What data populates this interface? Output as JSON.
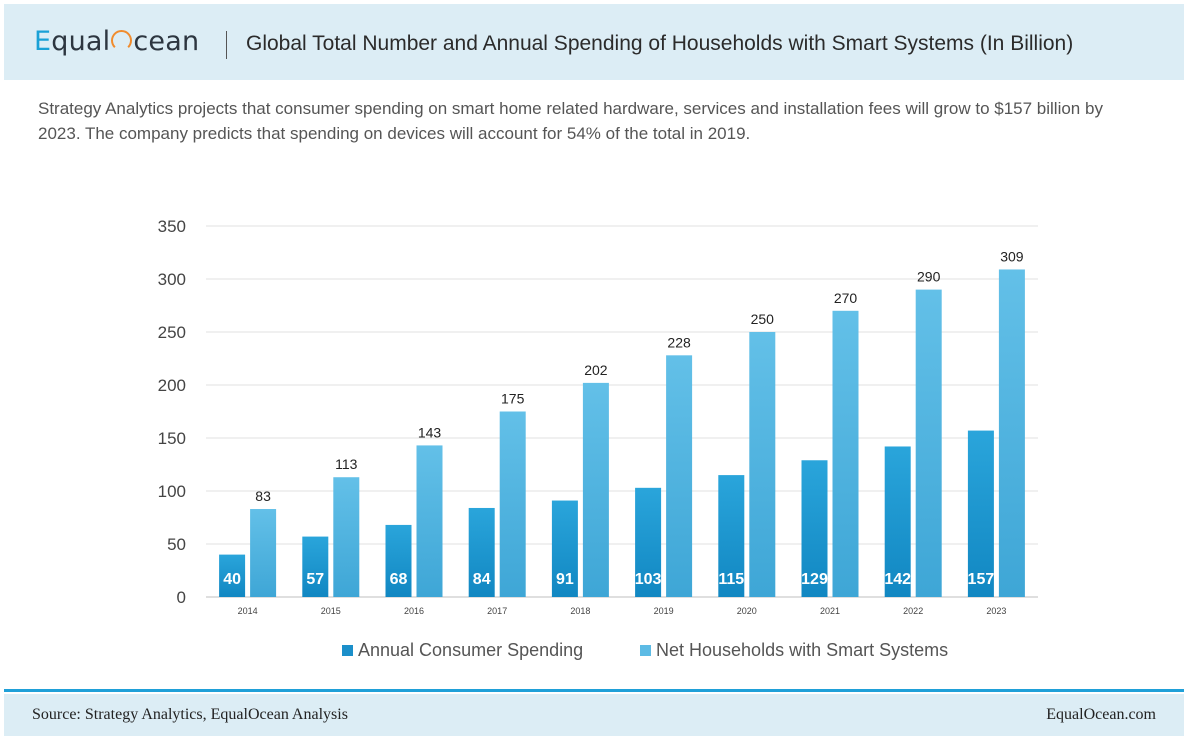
{
  "header": {
    "logo": {
      "part1": "E",
      "part2": "qual",
      "part3": "cean"
    },
    "title": "Global Total Number and Annual Spending of Households with Smart Systems (In Billion)"
  },
  "description": "Strategy Analytics projects that consumer spending on smart home related hardware, services and installation fees will grow to $157 billion by 2023. The company predicts that spending on devices will account for 54% of the total in 2019.",
  "chart_data": {
    "type": "bar",
    "title": "Global Total Number and Annual Spending of Households with Smart Systems (In Billion)",
    "categories": [
      "2014",
      "2015",
      "2016",
      "2017",
      "2018",
      "2019",
      "2020",
      "2021",
      "2022",
      "2023"
    ],
    "series": [
      {
        "name": "Annual Consumer Spending",
        "values": [
          40,
          57,
          68,
          84,
          91,
          103,
          115,
          129,
          142,
          157
        ],
        "color": "#1b96cf",
        "color_light": "#3fb0e2"
      },
      {
        "name": "Net Households with Smart Systems",
        "values": [
          83,
          113,
          143,
          175,
          202,
          228,
          250,
          270,
          290,
          309
        ],
        "color": "#5dbbe5",
        "color_light": "#45a8d8"
      }
    ],
    "yticks": [
      0,
      50,
      100,
      150,
      200,
      250,
      300,
      350
    ],
    "ylim": [
      0,
      350
    ],
    "legend": "bottom",
    "grid": true
  },
  "footer": {
    "source": "Source: Strategy Analytics, EqualOcean Analysis",
    "site": "EqualOcean.com"
  }
}
